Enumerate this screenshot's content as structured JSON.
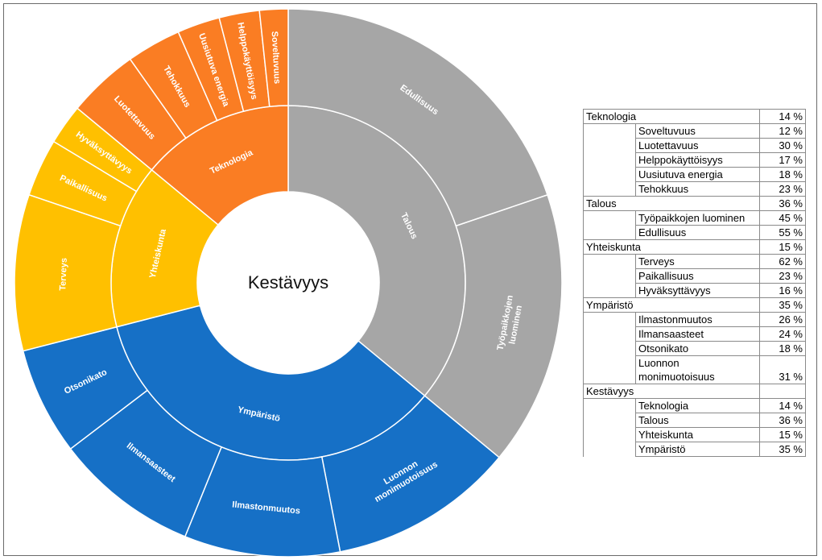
{
  "chart_data": {
    "type": "sunburst",
    "title": "Kestävyys",
    "categories": [
      {
        "name": "Talous",
        "value": 36,
        "color": "#A6A6A6",
        "children": [
          {
            "name": "Edullisuus",
            "value": 55
          },
          {
            "name": "Työpaikkojen luominen",
            "value": 45
          }
        ]
      },
      {
        "name": "Ympäristö",
        "value": 35,
        "color": "#1670C6",
        "children": [
          {
            "name": "Luonnon monimuotoisuus",
            "value": 31
          },
          {
            "name": "Ilmastonmuutos",
            "value": 26
          },
          {
            "name": "Ilmansaasteet",
            "value": 24
          },
          {
            "name": "Otsonikato",
            "value": 18
          }
        ]
      },
      {
        "name": "Yhteiskunta",
        "value": 15,
        "color": "#FFC000",
        "children": [
          {
            "name": "Terveys",
            "value": 62
          },
          {
            "name": "Paikallisuus",
            "value": 23
          },
          {
            "name": "Hyväksyttävyys",
            "value": 16
          }
        ]
      },
      {
        "name": "Teknologia",
        "value": 14,
        "color": "#FA7D23",
        "children": [
          {
            "name": "Luotettavuus",
            "value": 30
          },
          {
            "name": "Tehokkuus",
            "value": 23
          },
          {
            "name": "Uusiutuva energia",
            "value": 18
          },
          {
            "name": "Helppokäyttöisyys",
            "value": 17
          },
          {
            "name": "Soveltuvuus",
            "value": 12
          }
        ]
      }
    ]
  },
  "table": {
    "groups": [
      {
        "name": "Teknologia",
        "pct": "14 %",
        "rows": [
          {
            "name": "Soveltuvuus",
            "pct": "12 %"
          },
          {
            "name": "Luotettavuus",
            "pct": "30 %"
          },
          {
            "name": "Helppokäyttöisyys",
            "pct": "17 %"
          },
          {
            "name": "Uusiutuva energia",
            "pct": "18 %"
          },
          {
            "name": "Tehokkuus",
            "pct": "23 %"
          }
        ]
      },
      {
        "name": "Talous",
        "pct": "36 %",
        "rows": [
          {
            "name": "Työpaikkojen luominen",
            "pct": "45 %"
          },
          {
            "name": "Edullisuus",
            "pct": "55 %"
          }
        ]
      },
      {
        "name": "Yhteiskunta",
        "pct": "15 %",
        "rows": [
          {
            "name": "Terveys",
            "pct": "62 %"
          },
          {
            "name": "Paikallisuus",
            "pct": "23 %"
          },
          {
            "name": "Hyväksyttävyys",
            "pct": "16 %"
          }
        ]
      },
      {
        "name": "Ympäristö",
        "pct": "35 %",
        "rows": [
          {
            "name": "Ilmastonmuutos",
            "pct": "26 %"
          },
          {
            "name": "Ilmansaasteet",
            "pct": "24 %"
          },
          {
            "name": "Otsonikato",
            "pct": "18 %"
          },
          {
            "name": "Luonnon monimuotoisuus",
            "pct": "31 %"
          }
        ]
      },
      {
        "name": "Kestävyys",
        "pct": "",
        "rows": [
          {
            "name": "Teknologia",
            "pct": "14 %"
          },
          {
            "name": "Talous",
            "pct": "36 %"
          },
          {
            "name": "Yhteiskunta",
            "pct": "15 %"
          },
          {
            "name": "Ympäristö",
            "pct": "35 %"
          }
        ]
      }
    ]
  }
}
